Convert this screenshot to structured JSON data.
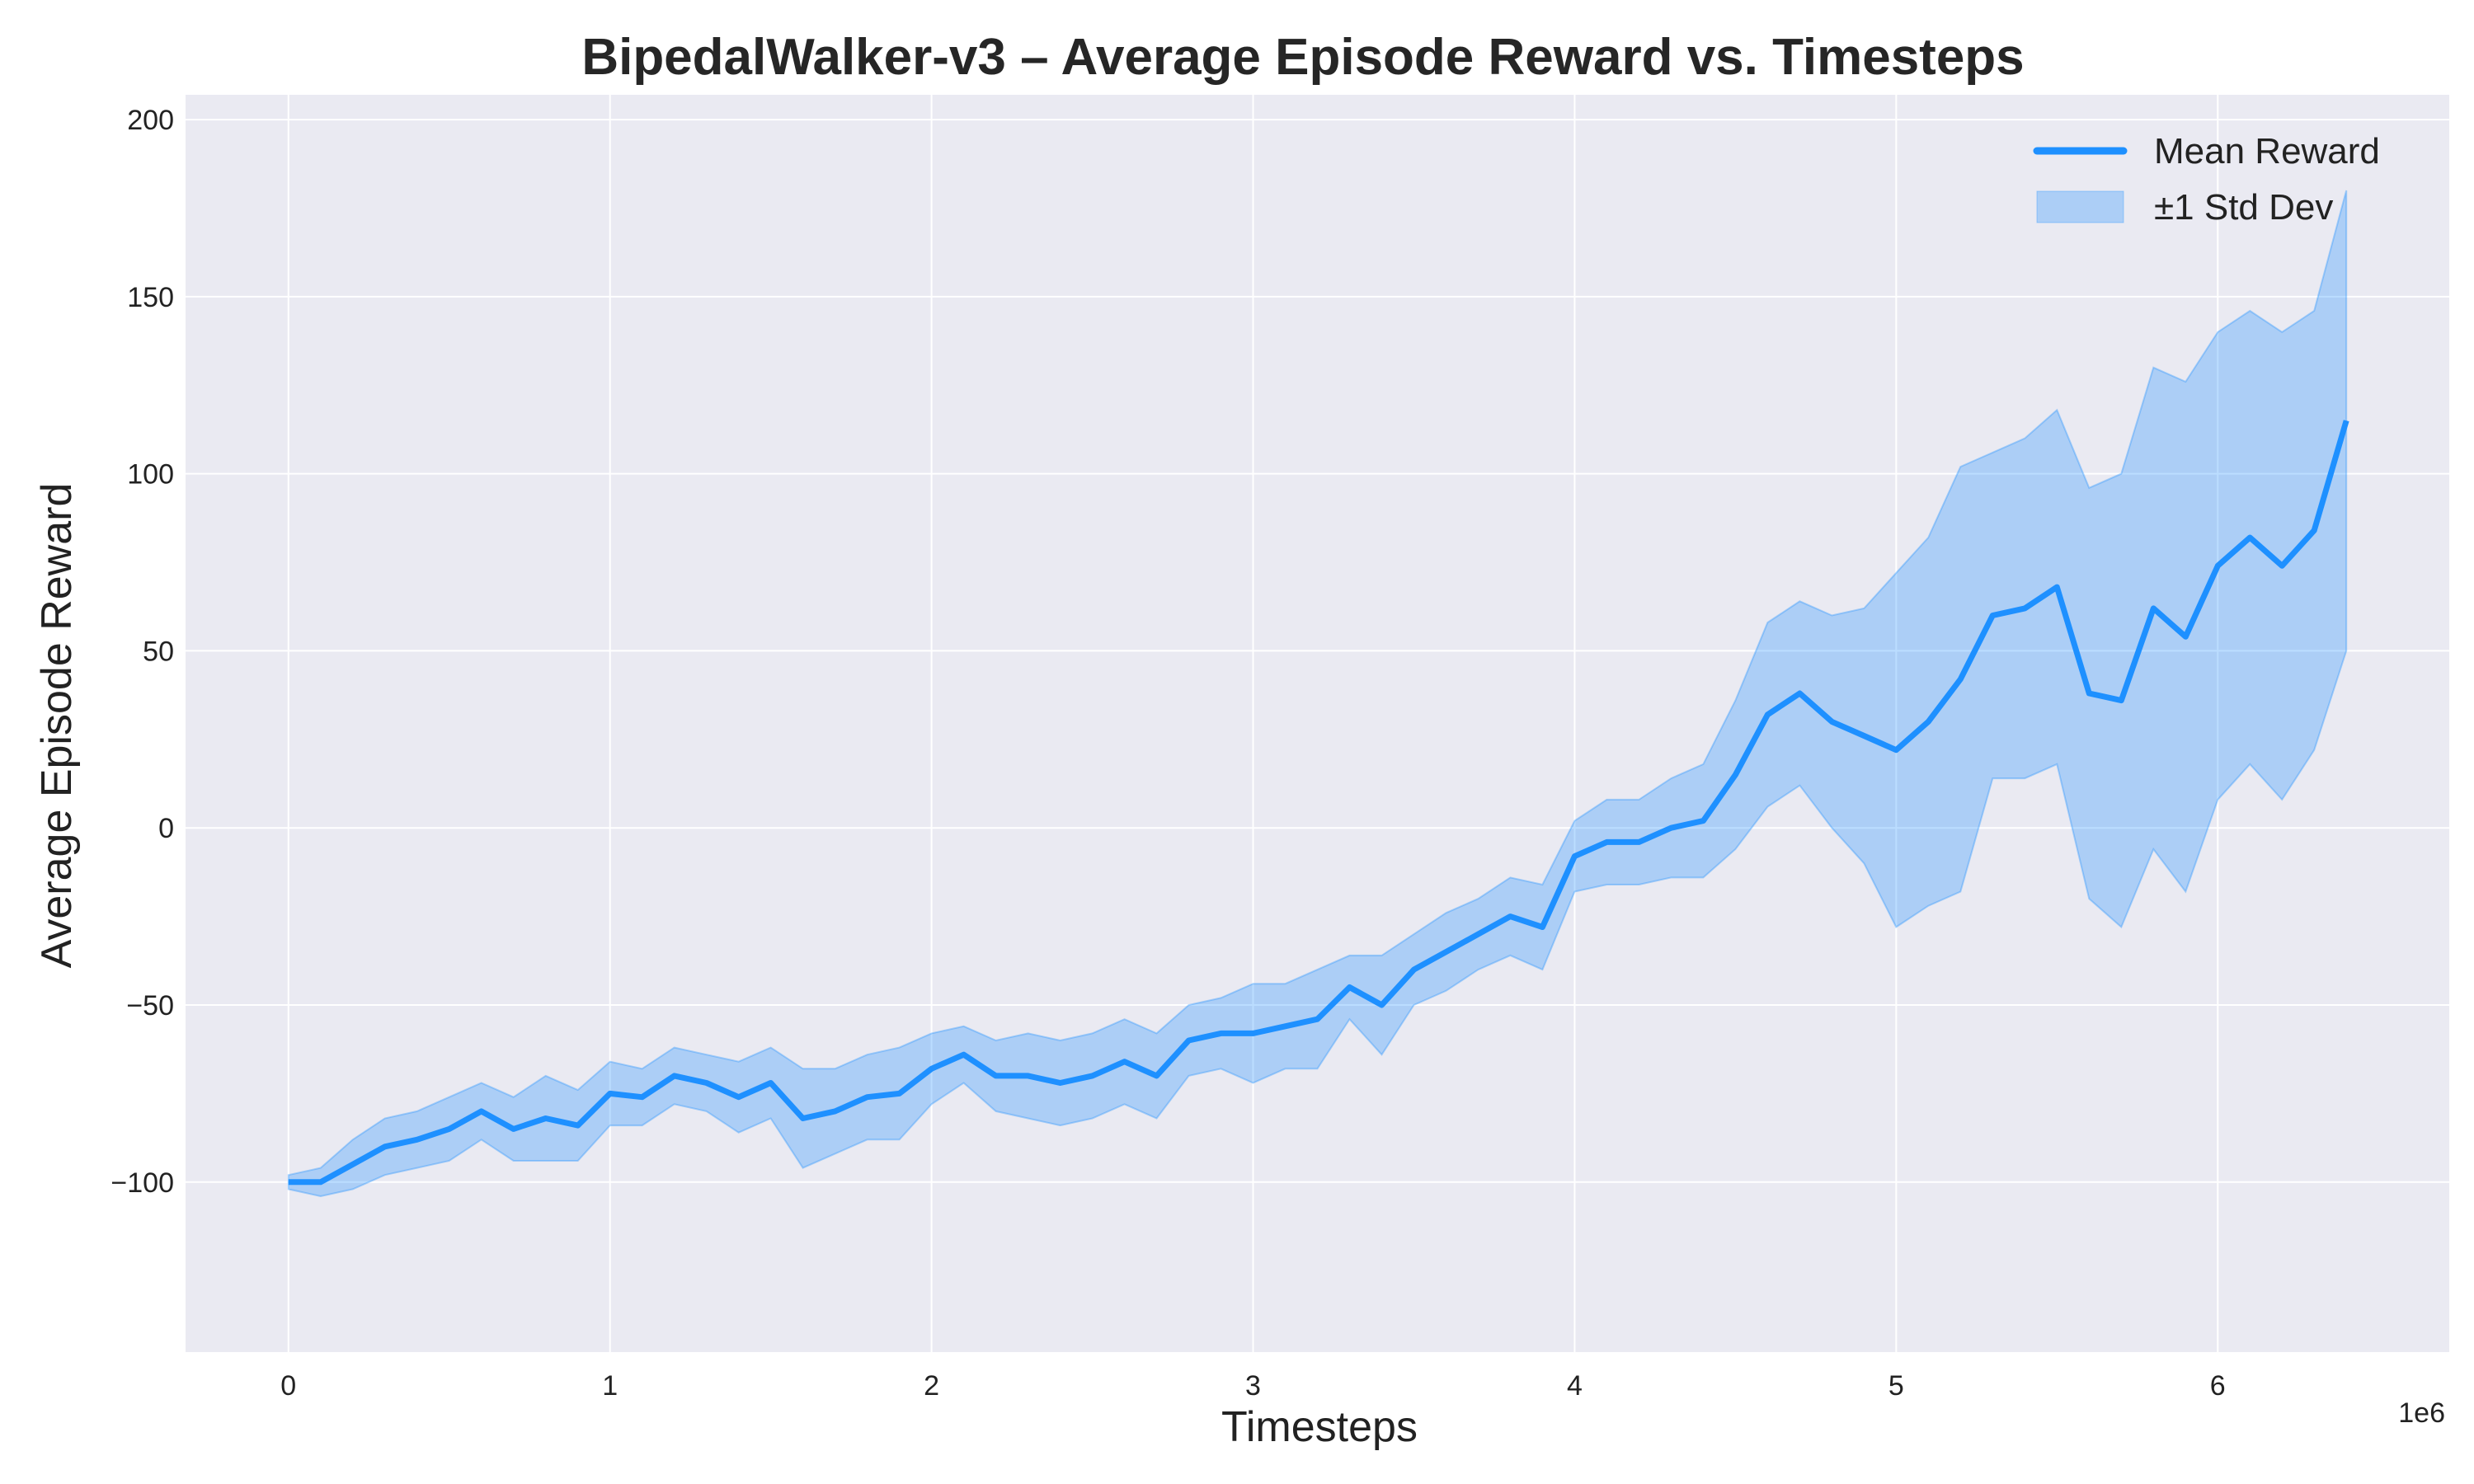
{
  "chart_data": {
    "type": "line",
    "title": "BipedalWalker-v3 – Average Episode Reward vs. Timesteps",
    "xlabel": "Timesteps",
    "ylabel": "Average Episode Reward",
    "x_multiplier_label": "1e6",
    "xlim": [
      -0.32,
      6.72
    ],
    "ylim": [
      -148,
      207
    ],
    "xticks": [
      0,
      1,
      2,
      3,
      4,
      5,
      6
    ],
    "xtick_labels": [
      "0",
      "1",
      "2",
      "3",
      "4",
      "5",
      "6"
    ],
    "yticks": [
      200,
      150,
      100,
      50,
      0,
      -50,
      -100
    ],
    "ytick_labels": [
      "200",
      "150",
      "100",
      "50",
      "0",
      "−50",
      "−100"
    ],
    "grid": true,
    "legend_position": "top-right",
    "legend": [
      "Mean Reward",
      "±1 Std Dev"
    ],
    "x_unit": "timesteps (×1e6)",
    "series": [
      {
        "name": "Mean Reward",
        "color": "#1e90ff",
        "x": [
          0,
          0.1,
          0.2,
          0.3,
          0.4,
          0.5,
          0.6,
          0.7,
          0.8,
          0.9,
          1.0,
          1.1,
          1.2,
          1.3,
          1.4,
          1.5,
          1.6,
          1.7,
          1.8,
          1.9,
          2.0,
          2.1,
          2.2,
          2.3,
          2.4,
          2.5,
          2.6,
          2.7,
          2.8,
          2.9,
          3.0,
          3.1,
          3.2,
          3.3,
          3.4,
          3.5,
          3.6,
          3.7,
          3.8,
          3.9,
          4.0,
          4.1,
          4.2,
          4.3,
          4.4,
          4.5,
          4.6,
          4.7,
          4.8,
          4.9,
          5.0,
          5.1,
          5.2,
          5.3,
          5.4,
          5.5,
          5.6,
          5.7,
          5.8,
          5.9,
          6.0,
          6.1,
          6.2,
          6.3,
          6.4
        ],
        "y": [
          -100,
          -100,
          -95,
          -90,
          -88,
          -85,
          -80,
          -85,
          -82,
          -84,
          -75,
          -76,
          -70,
          -72,
          -76,
          -72,
          -82,
          -80,
          -76,
          -75,
          -68,
          -64,
          -70,
          -70,
          -72,
          -70,
          -66,
          -70,
          -60,
          -58,
          -58,
          -56,
          -54,
          -45,
          -50,
          -40,
          -35,
          -30,
          -25,
          -28,
          -8,
          -4,
          -4,
          0,
          2,
          15,
          32,
          38,
          30,
          26,
          22,
          30,
          42,
          60,
          62,
          68,
          38,
          36,
          62,
          54,
          74,
          82,
          74,
          84,
          115
        ]
      },
      {
        "name": "±1 Std Dev",
        "color": "#1e90ff",
        "opacity": 0.3,
        "x": [
          0,
          0.1,
          0.2,
          0.3,
          0.4,
          0.5,
          0.6,
          0.7,
          0.8,
          0.9,
          1.0,
          1.1,
          1.2,
          1.3,
          1.4,
          1.5,
          1.6,
          1.7,
          1.8,
          1.9,
          2.0,
          2.1,
          2.2,
          2.3,
          2.4,
          2.5,
          2.6,
          2.7,
          2.8,
          2.9,
          3.0,
          3.1,
          3.2,
          3.3,
          3.4,
          3.5,
          3.6,
          3.7,
          3.8,
          3.9,
          4.0,
          4.1,
          4.2,
          4.3,
          4.4,
          4.5,
          4.6,
          4.7,
          4.8,
          4.9,
          5.0,
          5.1,
          5.2,
          5.3,
          5.4,
          5.5,
          5.6,
          5.7,
          5.8,
          5.9,
          6.0,
          6.1,
          6.2,
          6.3,
          6.4
        ],
        "upper": [
          -98,
          -96,
          -88,
          -82,
          -80,
          -76,
          -72,
          -76,
          -70,
          -74,
          -66,
          -68,
          -62,
          -64,
          -66,
          -62,
          -68,
          -68,
          -64,
          -62,
          -58,
          -56,
          -60,
          -58,
          -60,
          -58,
          -54,
          -58,
          -50,
          -48,
          -44,
          -44,
          -40,
          -36,
          -36,
          -30,
          -24,
          -20,
          -14,
          -16,
          2,
          8,
          8,
          14,
          18,
          36,
          58,
          64,
          60,
          62,
          72,
          82,
          102,
          106,
          110,
          118,
          96,
          100,
          130,
          126,
          140,
          146,
          140,
          146,
          180
        ]
      },
      {
        "name": "±1 Std Dev lower",
        "x": [
          0,
          0.1,
          0.2,
          0.3,
          0.4,
          0.5,
          0.6,
          0.7,
          0.8,
          0.9,
          1.0,
          1.1,
          1.2,
          1.3,
          1.4,
          1.5,
          1.6,
          1.7,
          1.8,
          1.9,
          2.0,
          2.1,
          2.2,
          2.3,
          2.4,
          2.5,
          2.6,
          2.7,
          2.8,
          2.9,
          3.0,
          3.1,
          3.2,
          3.3,
          3.4,
          3.5,
          3.6,
          3.7,
          3.8,
          3.9,
          4.0,
          4.1,
          4.2,
          4.3,
          4.4,
          4.5,
          4.6,
          4.7,
          4.8,
          4.9,
          5.0,
          5.1,
          5.2,
          5.3,
          5.4,
          5.5,
          5.6,
          5.7,
          5.8,
          5.9,
          6.0,
          6.1,
          6.2,
          6.3,
          6.4
        ],
        "lower": [
          -102,
          -104,
          -102,
          -98,
          -96,
          -94,
          -88,
          -94,
          -94,
          -94,
          -84,
          -84,
          -78,
          -80,
          -86,
          -82,
          -96,
          -92,
          -88,
          -88,
          -78,
          -72,
          -80,
          -82,
          -84,
          -82,
          -78,
          -82,
          -70,
          -68,
          -72,
          -68,
          -68,
          -54,
          -64,
          -50,
          -46,
          -40,
          -36,
          -40,
          -18,
          -16,
          -16,
          -14,
          -14,
          -6,
          6,
          12,
          0,
          -10,
          -28,
          -22,
          -18,
          14,
          14,
          18,
          -20,
          -28,
          -6,
          -18,
          8,
          18,
          8,
          22,
          50
        ]
      }
    ]
  }
}
